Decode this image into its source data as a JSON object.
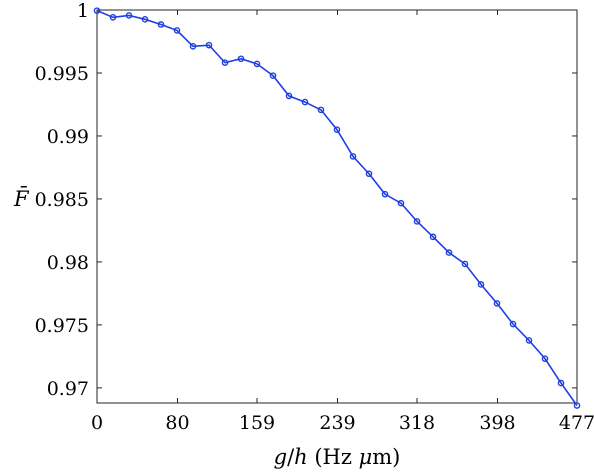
{
  "chart_data": {
    "type": "line",
    "xlabel": "g/h (Hz μm)",
    "ylabel": "F̄",
    "xlim": [
      0,
      477
    ],
    "ylim": [
      0.9688,
      1.0
    ],
    "xticks": [
      0,
      80,
      159,
      239,
      318,
      398,
      477
    ],
    "xtick_labels": [
      "0",
      "80",
      "159",
      "239",
      "318",
      "398",
      "477"
    ],
    "yticks": [
      0.97,
      0.975,
      0.98,
      0.985,
      0.99,
      0.995,
      1.0
    ],
    "ytick_labels": [
      "0.97",
      "0.975",
      "0.98",
      "0.985",
      "0.99",
      "0.995",
      "1"
    ],
    "grid": false,
    "series": [
      {
        "color": "#1f3fe0",
        "x": [
          0,
          15.9,
          31.8,
          47.7,
          63.6,
          79.5,
          95.4,
          111.3,
          127.2,
          143.1,
          159,
          174.9,
          190.8,
          206.7,
          222.6,
          238.5,
          254.4,
          270.3,
          286.2,
          302.1,
          318,
          333.9,
          349.8,
          365.7,
          381.6,
          397.5,
          413.4,
          429.3,
          445.2,
          461.1,
          477
        ],
        "y": [
          0.99995,
          0.99942,
          0.99957,
          0.99926,
          0.99885,
          0.99838,
          0.99712,
          0.99721,
          0.99582,
          0.99613,
          0.99572,
          0.99479,
          0.99318,
          0.99269,
          0.99207,
          0.9905,
          0.98838,
          0.987,
          0.98538,
          0.98466,
          0.98322,
          0.98199,
          0.98074,
          0.97984,
          0.97821,
          0.97671,
          0.97507,
          0.97377,
          0.97232,
          0.97038,
          0.9686
        ]
      }
    ]
  }
}
